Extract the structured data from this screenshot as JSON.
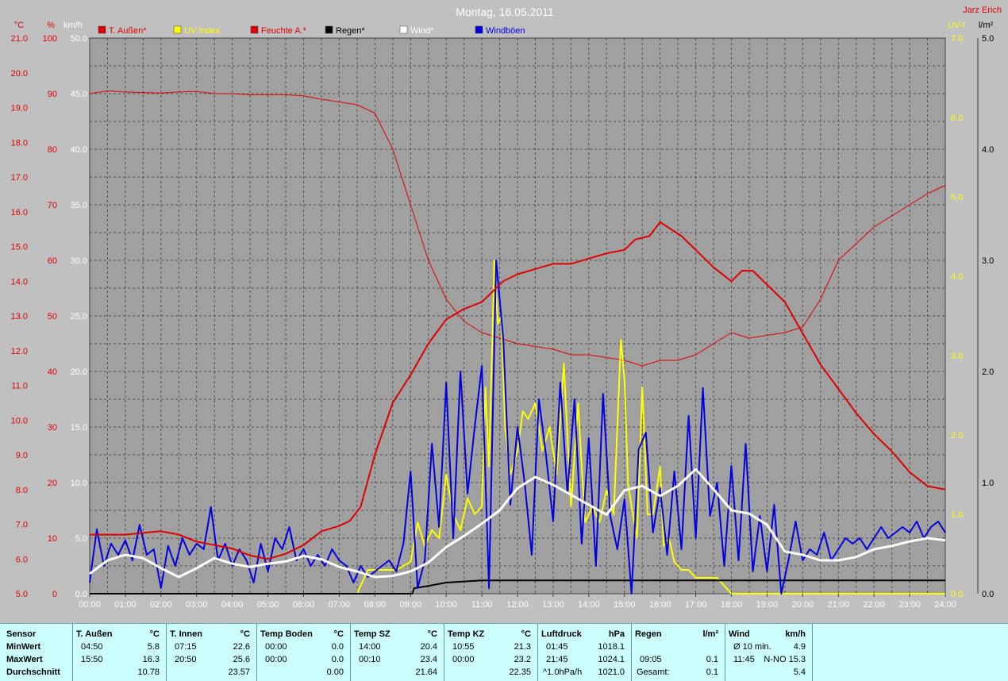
{
  "title": "Montag, 16.05.2011",
  "station": "Jarz Erich",
  "colors": {
    "bg": "#c0c0c0",
    "plot": "#a0a0a0",
    "red": "#e00000",
    "yellow": "#ffff00",
    "black": "#000000",
    "white": "#ffffff",
    "blue": "#0000e0",
    "footer": "#cdfefe"
  },
  "legend": [
    {
      "label": "T. Außen*",
      "color": "#e00000"
    },
    {
      "label": "UV Index",
      "color": "#ffff00"
    },
    {
      "label": "Feuchte A.*",
      "color": "#e00000"
    },
    {
      "label": "Regen*",
      "color": "#000000"
    },
    {
      "label": "Wind*",
      "color": "#ffffff"
    },
    {
      "label": "Windböen",
      "color": "#0000e0"
    }
  ],
  "axes": {
    "temp": {
      "unit": "°C",
      "min": 5.0,
      "max": 21.0,
      "ticks": [
        "21.0",
        "20.0",
        "19.0",
        "18.0",
        "17.0",
        "16.0",
        "15.0",
        "14.0",
        "13.0",
        "12.0",
        "11.0",
        "10.0",
        "9.0",
        "8.0",
        "7.0",
        "6.0",
        "5.0"
      ]
    },
    "humidity": {
      "unit": "%",
      "min": 0,
      "max": 100,
      "ticks": [
        "100",
        "90",
        "80",
        "70",
        "60",
        "50",
        "40",
        "30",
        "20",
        "10",
        "0"
      ]
    },
    "wind": {
      "unit": "km/h",
      "min": 0,
      "max": 50,
      "ticks": [
        "50.0",
        "45.0",
        "40.0",
        "35.0",
        "30.0",
        "25.0",
        "20.0",
        "15.0",
        "10.0",
        "5.0",
        "0.0"
      ]
    },
    "uv": {
      "unit": "UV-I",
      "min": 0,
      "max": 7,
      "ticks": [
        "7.0",
        "6.0",
        "5.0",
        "4.0",
        "3.0",
        "2.0",
        "1.0",
        "0.0"
      ]
    },
    "rain": {
      "unit": "l/m²",
      "min": 0,
      "max": 5,
      "ticks": [
        "5.0",
        "4.0",
        "3.0",
        "2.0",
        "1.0",
        "0.0"
      ]
    },
    "x_ticks": [
      "00:00",
      "01:00",
      "02:00",
      "03:00",
      "04:00",
      "05:00",
      "06:00",
      "07:00",
      "08:00",
      "09:00",
      "10:00",
      "11:00",
      "12:00",
      "13:00",
      "14:00",
      "15:00",
      "16:00",
      "17:00",
      "18:00",
      "19:00",
      "20:00",
      "21:00",
      "22:00",
      "23:00",
      "24:00"
    ]
  },
  "chart_data": {
    "type": "line",
    "title": "Montag, 16.05.2011",
    "x_range": [
      "00:00",
      "24:00"
    ],
    "grid": true,
    "series": [
      {
        "name": "T. Außen*",
        "axis": "temp",
        "color": "#e00000",
        "width": 2,
        "x": [
          0,
          0.5,
          1,
          1.5,
          2,
          2.5,
          3,
          3.5,
          4,
          4.5,
          5,
          5.5,
          6,
          6.5,
          7,
          7.3,
          7.6,
          8,
          8.5,
          9,
          9.5,
          10,
          10.5,
          11,
          11.3,
          11.6,
          12,
          12.5,
          13,
          13.5,
          14,
          14.5,
          15,
          15.3,
          15.7,
          16,
          16.3,
          16.6,
          17,
          17.5,
          18,
          18.3,
          18.6,
          19,
          19.5,
          20,
          20.5,
          21,
          21.5,
          22,
          22.5,
          23,
          23.5,
          24
        ],
        "y": [
          6.7,
          6.7,
          6.7,
          6.75,
          6.8,
          6.7,
          6.5,
          6.4,
          6.3,
          6.1,
          6.0,
          6.15,
          6.4,
          6.8,
          6.95,
          7.1,
          7.5,
          9.0,
          10.5,
          11.3,
          12.2,
          12.9,
          13.2,
          13.4,
          13.7,
          14.0,
          14.2,
          14.35,
          14.5,
          14.5,
          14.65,
          14.8,
          14.9,
          15.2,
          15.3,
          15.7,
          15.5,
          15.3,
          14.9,
          14.4,
          14.0,
          14.3,
          14.3,
          13.9,
          13.4,
          12.5,
          11.6,
          10.9,
          10.2,
          9.6,
          9.1,
          8.5,
          8.1,
          8.0
        ]
      },
      {
        "name": "Feuchte A.*",
        "axis": "humidity",
        "color": "#e00000",
        "width": 1,
        "x": [
          0,
          0.5,
          1,
          1.5,
          2,
          2.5,
          3,
          3.5,
          4,
          4.5,
          5,
          5.5,
          6,
          6.5,
          7,
          7.5,
          8,
          8.5,
          9,
          9.5,
          10,
          10.5,
          11,
          11.5,
          12,
          12.5,
          13,
          13.5,
          14,
          14.5,
          15,
          15.5,
          16,
          16.5,
          17,
          17.5,
          18,
          18.5,
          19,
          19.5,
          20,
          20.5,
          21,
          21.5,
          22,
          22.5,
          23,
          23.5,
          24
        ],
        "y": [
          90,
          90.5,
          90.3,
          90.2,
          90.1,
          90.3,
          90.4,
          90,
          90,
          89.8,
          89.8,
          89.8,
          89.6,
          89,
          88.5,
          88,
          86.5,
          80,
          70,
          60,
          53,
          49,
          47,
          46,
          45,
          44.5,
          44,
          43,
          43,
          42.5,
          42,
          41,
          42,
          42,
          43,
          45,
          47,
          46,
          46.5,
          47,
          48,
          53,
          60,
          63,
          66,
          68,
          70,
          72,
          73.5
        ]
      },
      {
        "name": "UV Index",
        "axis": "uv",
        "color": "#ffff00",
        "width": 2,
        "x": [
          0,
          7.5,
          7.8,
          8.2,
          8.6,
          9.0,
          9.2,
          9.4,
          9.6,
          9.8,
          10.0,
          10.2,
          10.4,
          10.6,
          10.8,
          11.0,
          11.1,
          11.2,
          11.35,
          11.45,
          11.55,
          11.65,
          11.8,
          12.0,
          12.15,
          12.3,
          12.5,
          12.7,
          12.9,
          13.1,
          13.3,
          13.5,
          13.7,
          13.8,
          13.9,
          14.1,
          14.3,
          14.5,
          14.7,
          14.9,
          15.0,
          15.1,
          15.2,
          15.35,
          15.5,
          15.65,
          15.8,
          16.0,
          16.1,
          16.25,
          16.4,
          16.6,
          16.8,
          17.0,
          17.2,
          17.4,
          17.6,
          17.8,
          18.0,
          18.2,
          18.4,
          18.6,
          19,
          24
        ],
        "y": [
          0,
          0,
          0.3,
          0.3,
          0.3,
          0.4,
          0.9,
          0.6,
          0.8,
          0.7,
          1.5,
          1.0,
          0.8,
          1.2,
          1.0,
          1.1,
          2.6,
          1.6,
          4.2,
          3.4,
          3.5,
          2.1,
          1.5,
          1.8,
          2.3,
          2.2,
          2.4,
          1.8,
          2.1,
          1.5,
          2.9,
          1.1,
          2.4,
          1.6,
          0.9,
          1.1,
          0.9,
          1.3,
          1.0,
          3.2,
          2.7,
          1.4,
          1.1,
          0.7,
          2.6,
          1.0,
          1.0,
          1.6,
          0.6,
          0.7,
          0.4,
          0.3,
          0.3,
          0.2,
          0.2,
          0.2,
          0.2,
          0.1,
          0.0,
          0,
          0,
          0,
          0,
          0
        ]
      },
      {
        "name": "Regen*",
        "axis": "rain",
        "color": "#000000",
        "width": 2,
        "x": [
          0,
          9.05,
          9.1,
          9.5,
          10,
          10.5,
          11,
          24
        ],
        "y": [
          0,
          0,
          0.05,
          0.07,
          0.1,
          0.11,
          0.12,
          0.12
        ]
      },
      {
        "name": "Wind*",
        "axis": "wind",
        "color": "#ffffff",
        "width": 3,
        "x": [
          0,
          0.5,
          1,
          1.5,
          2,
          2.5,
          3,
          3.5,
          4,
          4.5,
          5,
          5.5,
          6,
          6.5,
          7,
          7.5,
          8,
          8.5,
          9,
          9.5,
          10,
          10.5,
          11,
          11.5,
          12,
          12.5,
          13,
          13.5,
          14,
          14.5,
          15,
          15.5,
          16,
          16.5,
          17,
          17.5,
          18,
          18.5,
          19,
          19.5,
          20,
          20.5,
          21,
          21.5,
          22,
          22.5,
          23,
          23.5,
          24
        ],
        "y": [
          1.8,
          3.0,
          3.5,
          3.2,
          2.3,
          1.5,
          2.3,
          3.2,
          2.7,
          2.4,
          2.7,
          2.9,
          3.4,
          3.1,
          2.4,
          2.0,
          1.5,
          1.6,
          2.0,
          2.8,
          4.2,
          5.2,
          6.3,
          7.5,
          9.5,
          10.5,
          9.8,
          8.9,
          8.0,
          7.1,
          9.3,
          9.7,
          8.8,
          9.7,
          11.2,
          9.4,
          7.5,
          7.2,
          6.2,
          3.8,
          3.5,
          3.0,
          3.0,
          3.3,
          4.0,
          4.3,
          4.7,
          5.0,
          4.8
        ]
      },
      {
        "name": "Windböen",
        "axis": "wind",
        "color": "#0000e0",
        "width": 2,
        "x": [
          0,
          0.2,
          0.4,
          0.6,
          0.8,
          1.0,
          1.2,
          1.4,
          1.6,
          1.8,
          2.0,
          2.2,
          2.4,
          2.6,
          2.8,
          3.0,
          3.2,
          3.4,
          3.6,
          3.8,
          4.0,
          4.2,
          4.4,
          4.6,
          4.8,
          5.0,
          5.2,
          5.4,
          5.6,
          5.8,
          6.0,
          6.2,
          6.4,
          6.6,
          6.8,
          7.0,
          7.2,
          7.4,
          7.6,
          7.8,
          8.0,
          8.2,
          8.4,
          8.6,
          8.8,
          9.0,
          9.2,
          9.4,
          9.6,
          9.8,
          10.0,
          10.2,
          10.4,
          10.6,
          10.8,
          11.0,
          11.2,
          11.4,
          11.6,
          11.8,
          12.0,
          12.2,
          12.4,
          12.6,
          12.8,
          13.0,
          13.2,
          13.4,
          13.6,
          13.8,
          14.0,
          14.2,
          14.4,
          14.6,
          14.8,
          15.0,
          15.2,
          15.4,
          15.6,
          15.8,
          16.0,
          16.2,
          16.4,
          16.6,
          16.8,
          17.0,
          17.2,
          17.4,
          17.6,
          17.8,
          18.0,
          18.2,
          18.4,
          18.6,
          18.8,
          19.0,
          19.2,
          19.4,
          19.6,
          19.8,
          20.0,
          20.2,
          20.4,
          20.6,
          20.8,
          21.0,
          21.2,
          21.4,
          21.6,
          21.8,
          22.0,
          22.2,
          22.4,
          22.6,
          22.8,
          23.0,
          23.2,
          23.4,
          23.6,
          23.8,
          24.0
        ],
        "y": [
          1.0,
          5.8,
          2.5,
          4.5,
          3.5,
          4.8,
          3.0,
          6.2,
          3.5,
          4.0,
          0.5,
          4.3,
          2.5,
          5.0,
          3.5,
          4.5,
          4.0,
          7.8,
          3.0,
          4.5,
          2.5,
          4.0,
          3.0,
          1.0,
          4.5,
          2.0,
          5.0,
          4.0,
          6.0,
          3.0,
          4.0,
          2.5,
          3.5,
          2.5,
          4.0,
          3.0,
          2.5,
          1.0,
          2.5,
          1.5,
          2.0,
          2.5,
          3.0,
          2.0,
          4.5,
          11.0,
          0.5,
          3.0,
          13.5,
          6.0,
          19.0,
          5.0,
          20.0,
          9.0,
          15.0,
          20.5,
          0.5,
          30.0,
          23.0,
          8.0,
          15.0,
          10.0,
          3.5,
          17.5,
          12.5,
          6.5,
          19.0,
          9.0,
          17.5,
          4.5,
          14.0,
          2.5,
          18.0,
          7.0,
          4.0,
          8.5,
          0.0,
          13.0,
          14.5,
          5.5,
          9.5,
          3.5,
          11.0,
          4.0,
          16.0,
          5.0,
          18.5,
          7.0,
          10.0,
          2.5,
          11.5,
          3.0,
          13.5,
          2.0,
          7.0,
          2.0,
          8.0,
          0.0,
          3.0,
          6.5,
          3.0,
          4.0,
          3.5,
          5.5,
          3.0,
          4.0,
          5.0,
          4.5,
          5.0,
          4.0,
          5.0,
          6.0,
          5.0,
          5.5,
          6.0,
          5.5,
          6.5,
          5.0,
          6.0,
          6.5,
          5.5
        ]
      }
    ]
  },
  "footer": {
    "sensor": {
      "header": "Sensor",
      "rows": [
        "MinWert",
        "MaxWert",
        "Durchschnitt"
      ]
    },
    "sections": [
      {
        "name": "T. Außen",
        "unit": "°C",
        "min_time": "04:50",
        "min": "5.8",
        "max_time": "15:50",
        "max": "16.3",
        "avg": "10.78"
      },
      {
        "name": "T. Innen",
        "unit": "°C",
        "min_time": "07:15",
        "min": "22.6",
        "max_time": "20:50",
        "max": "25.6",
        "avg": "23.57"
      },
      {
        "name": "Temp Boden",
        "unit": "°C",
        "min_time": "00:00",
        "min": "0.0",
        "max_time": "00:00",
        "max": "0.0",
        "avg": "0.00"
      },
      {
        "name": "Temp SZ",
        "unit": "°C",
        "min_time": "14:00",
        "min": "20.4",
        "max_time": "00:10",
        "max": "23.4",
        "avg": "21.64"
      },
      {
        "name": "Temp KZ",
        "unit": "°C",
        "min_time": "10:55",
        "min": "21.3",
        "max_time": "00:00",
        "max": "23.2",
        "avg": "22.35"
      },
      {
        "name": "Luftdruck",
        "unit": "hPa",
        "min_time": "01:45",
        "min": "1018.1",
        "max_time": "21:45",
        "max": "1024.1",
        "avg_label": "^1.0hPa/h",
        "avg": "1021.0"
      },
      {
        "name": "Regen",
        "unit": "l/m²",
        "min_time": "",
        "min": "",
        "max_time": "09:05",
        "max": "0.1",
        "avg_label": "Gesamt:",
        "avg": "0.1"
      },
      {
        "name": "Wind",
        "unit": "km/h",
        "min_time": "Ø 10 min.",
        "min": "4.9",
        "max_time": "11:45",
        "max": "N-NO 15.3",
        "avg_label": "",
        "avg": "5.4"
      }
    ]
  }
}
